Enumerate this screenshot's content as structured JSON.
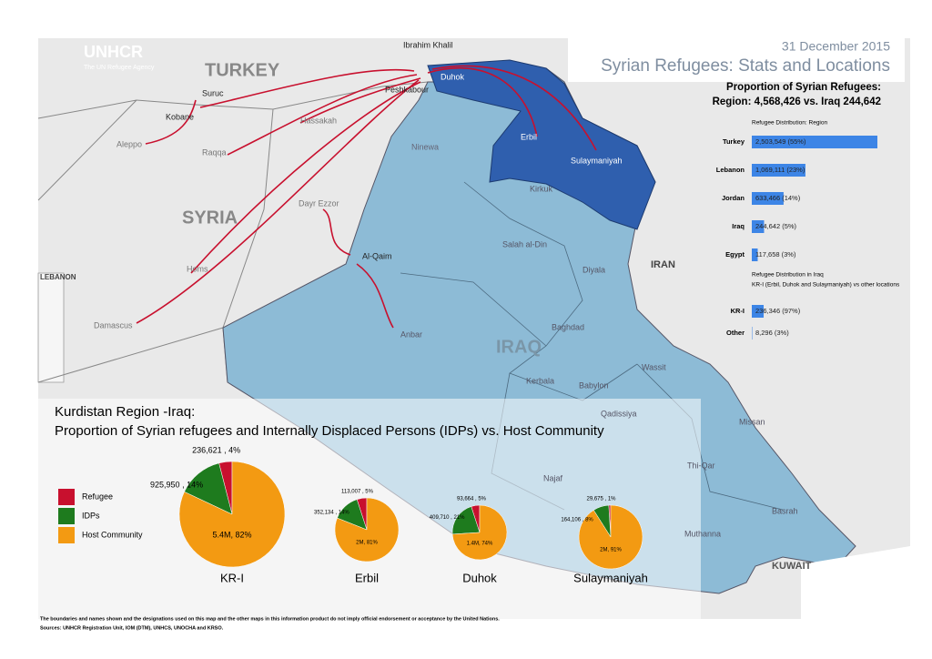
{
  "header": {
    "org": "UNHCR",
    "tagline": "The UN Refugee Agency",
    "date": "31 December 2015",
    "title": "Syrian Refugees: Stats and Locations"
  },
  "summary": {
    "heading": "Proportion of Syrian Refugees:",
    "line": "Region: 4,568,426 vs. Iraq 244,642"
  },
  "region_chart": {
    "title": "Refugee Distribution: Region",
    "color": "#3d85e6",
    "categories": [
      "Turkey",
      "Lebanon",
      "Jordan",
      "Iraq",
      "Egypt"
    ],
    "values": [
      2503549,
      1069111,
      633466,
      244642,
      117658
    ],
    "value_labels": [
      "2,503,549 (55%)",
      "1,069,111 (23%)",
      "633,466 (14%)",
      "244,642 (5%)",
      "117,658 (3%)"
    ]
  },
  "iraq_chart": {
    "title": "Refugee Distribution in Iraq",
    "subtitle": "KR-I (Erbil, Duhok and Sulaymaniyah) vs other locations",
    "color": "#3d85e6",
    "categories": [
      "KR-I",
      "Other"
    ],
    "values": [
      236346,
      8296
    ],
    "value_labels": [
      "236,346 (97%)",
      "8,296 (3%)"
    ]
  },
  "map": {
    "countries": [
      "TURKEY",
      "SYRIA",
      "IRAQ",
      "IRAN",
      "LEBANON",
      "KUWAIT"
    ],
    "places": [
      "Ibrahim Khalil",
      "Peshkabour",
      "Duhok",
      "Suruc",
      "Kobane",
      "Hassakah",
      "Aleppo",
      "Raqqa",
      "Ninewa",
      "Erbil",
      "Sulaymaniyah",
      "Kirkuk",
      "Dayr Ezzor",
      "Salah al-Din",
      "Diyala",
      "Al-Qaim",
      "Homs",
      "Anbar",
      "Baghdad",
      "Damascus",
      "Wassit",
      "Kerbala",
      "Babylon",
      "Qadissiya",
      "Missan",
      "Najaf",
      "Thi-Qar",
      "Basrah",
      "Muthanna"
    ]
  },
  "pies": {
    "title": [
      "Kurdistan Region -Iraq:",
      "Proportion of Syrian refugees and Internally Displaced Persons (IDPs) vs. Host Community"
    ],
    "legend": [
      {
        "name": "Refugee",
        "color": "#c8102e"
      },
      {
        "name": "IDPs",
        "color": "#1e7b1e"
      },
      {
        "name": "Host Community",
        "color": "#f39a12"
      }
    ],
    "charts": [
      {
        "name": "KR-I",
        "values": [
          4,
          14,
          82
        ],
        "value_labels": [
          "236,621 , 4%",
          "925,950 , 14%",
          "5.4M, 82%"
        ]
      },
      {
        "name": "Erbil",
        "values": [
          5,
          14,
          81
        ],
        "value_labels": [
          "113,007 , 5%",
          "352,134 , 14%",
          "2M, 81%"
        ]
      },
      {
        "name": "Duhok",
        "values": [
          5,
          21,
          74
        ],
        "value_labels": [
          "93,664 , 5%",
          "409,710 , 21%",
          "1.4M, 74%"
        ]
      },
      {
        "name": "Sulaymaniyah",
        "values": [
          1,
          8,
          91
        ],
        "value_labels": [
          "29,675 , 1%",
          "164,106 , 8%",
          "2M, 91%"
        ]
      }
    ]
  },
  "footer": {
    "disclaimer": "The boundaries and names shown and the designations used on this map and the other maps in this information product do not imply official endorsement or acceptance by the United Nations.",
    "sources": "Sources: UNHCR Registration Unit, IOM (DTM), UNHCS, UNOCHA and KRSO."
  }
}
